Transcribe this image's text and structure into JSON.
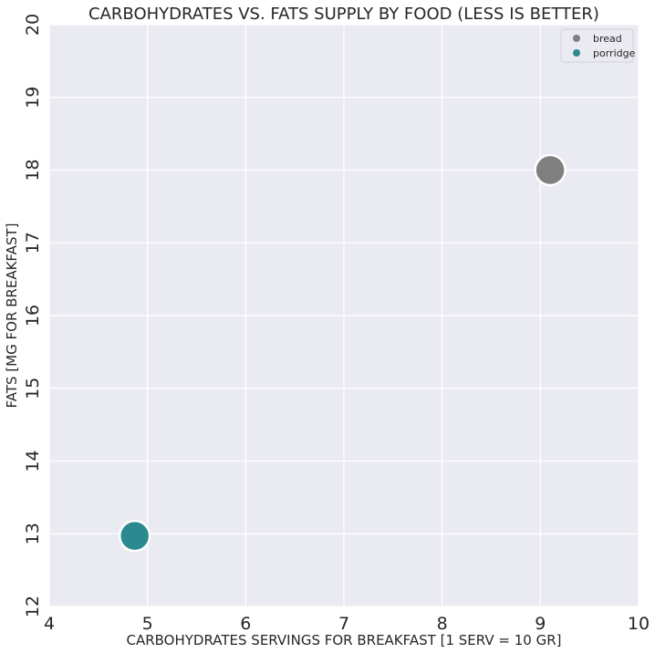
{
  "chart_data": {
    "type": "scatter",
    "title": "CARBOHYDRATES VS. FATS SUPPLY BY FOOD (LESS IS BETTER)",
    "xlabel": "CARBOHYDRATES SERVINGS FOR BREAKFAST [1 SERV = 10 GR]",
    "ylabel": "FATS  [MG FOR BREAKFAST]",
    "xlim": [
      4,
      10
    ],
    "ylim": [
      12,
      20
    ],
    "xticks": [
      "4",
      "5",
      "6",
      "7",
      "8",
      "9",
      "10"
    ],
    "yticks": [
      "12",
      "13",
      "14",
      "15",
      "16",
      "17",
      "18",
      "19",
      "20"
    ],
    "grid": true,
    "legend_position": "top-right",
    "series": [
      {
        "name": "bread",
        "color": "#808080",
        "points": [
          {
            "x": 9.1,
            "y": 18.0
          }
        ]
      },
      {
        "name": "porridge",
        "color": "#2a8a8f",
        "points": [
          {
            "x": 4.87,
            "y": 12.97
          }
        ]
      }
    ],
    "background_color": "#eaeaf2",
    "grid_color": "#ffffff"
  }
}
